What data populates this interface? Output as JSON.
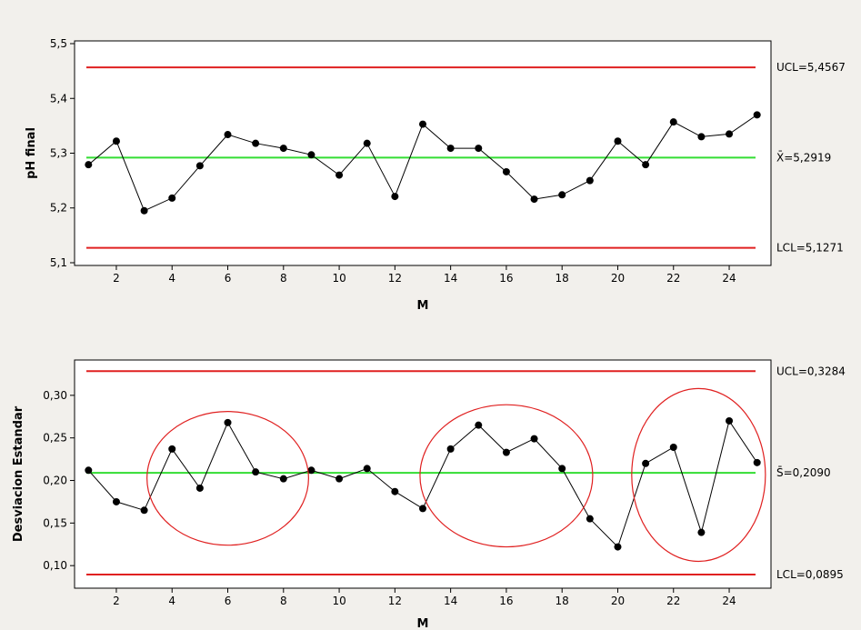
{
  "chart_data": [
    {
      "type": "line",
      "title": "",
      "xlabel": "M",
      "ylabel": "pH final",
      "xlim": [
        0.5,
        25.5
      ],
      "ylim": [
        5.095,
        5.505
      ],
      "x_ticks": [
        2,
        4,
        6,
        8,
        10,
        12,
        14,
        16,
        18,
        20,
        22,
        24
      ],
      "x_tick_labels": [
        "2",
        "4",
        "6",
        "8",
        "10",
        "12",
        "14",
        "16",
        "18",
        "20",
        "22",
        "24"
      ],
      "y_ticks": [
        5.1,
        5.2,
        5.3,
        5.4,
        5.5
      ],
      "y_tick_labels": [
        "5,1",
        "5,2",
        "5,3",
        "5,4",
        "5,5"
      ],
      "grid": false,
      "x": [
        1,
        2,
        3,
        4,
        5,
        6,
        7,
        8,
        9,
        10,
        11,
        12,
        13,
        14,
        15,
        16,
        17,
        18,
        19,
        20,
        21,
        22,
        23,
        24,
        25
      ],
      "values": [
        5.279,
        5.322,
        5.195,
        5.218,
        5.277,
        5.334,
        5.318,
        5.309,
        5.297,
        5.26,
        5.318,
        5.221,
        5.353,
        5.309,
        5.309,
        5.266,
        5.216,
        5.224,
        5.25,
        5.322,
        5.279,
        5.357,
        5.33,
        5.335,
        5.37
      ],
      "limits": [
        {
          "name": "UCL",
          "value": 5.4567,
          "label": "UCL=5,4567",
          "color": "#e02020"
        },
        {
          "name": "center",
          "value": 5.2919,
          "label": "X̄=5,2919",
          "color": "#33dd33"
        },
        {
          "name": "LCL",
          "value": 5.1271,
          "label": "LCL=5,1271",
          "color": "#e02020"
        }
      ]
    },
    {
      "type": "line",
      "title": "",
      "xlabel": "M",
      "ylabel": "Desviacion Estandar",
      "xlim": [
        0.5,
        25.5
      ],
      "ylim": [
        0.0735,
        0.3415
      ],
      "x_ticks": [
        2,
        4,
        6,
        8,
        10,
        12,
        14,
        16,
        18,
        20,
        22,
        24
      ],
      "x_tick_labels": [
        "2",
        "4",
        "6",
        "8",
        "10",
        "12",
        "14",
        "16",
        "18",
        "20",
        "22",
        "24"
      ],
      "y_ticks": [
        0.1,
        0.15,
        0.2,
        0.25,
        0.3
      ],
      "y_tick_labels": [
        "0,10",
        "0,15",
        "0,20",
        "0,25",
        "0,30"
      ],
      "grid": false,
      "x": [
        1,
        2,
        3,
        4,
        5,
        6,
        7,
        8,
        9,
        10,
        11,
        12,
        13,
        14,
        15,
        16,
        17,
        18,
        19,
        20,
        21,
        22,
        23,
        24,
        25
      ],
      "values": [
        0.212,
        0.175,
        0.165,
        0.237,
        0.191,
        0.268,
        0.21,
        0.202,
        0.212,
        0.202,
        0.214,
        0.187,
        0.167,
        0.237,
        0.265,
        0.233,
        0.249,
        0.214,
        0.155,
        0.122,
        0.22,
        0.239,
        0.139,
        0.27,
        0.221
      ],
      "limits": [
        {
          "name": "UCL",
          "value": 0.3284,
          "label": "UCL=0,3284",
          "color": "#e02020"
        },
        {
          "name": "center",
          "value": 0.209,
          "label": "S̄=0,2090",
          "color": "#33dd33"
        },
        {
          "name": "LCL",
          "value": 0.0895,
          "label": "LCL=0,0895",
          "color": "#e02020"
        }
      ],
      "annotations": [
        {
          "type": "ellipse",
          "x_center": 6.0,
          "x_radius": 2.9,
          "y_center": 0.2025,
          "y_radius": 0.0785,
          "color": "#e02020"
        },
        {
          "type": "ellipse",
          "x_center": 16.0,
          "x_radius": 3.1,
          "y_center": 0.2055,
          "y_radius": 0.0835,
          "color": "#e02020"
        },
        {
          "type": "ellipse",
          "x_center": 22.9,
          "x_radius": 2.4,
          "y_center": 0.2065,
          "y_radius": 0.1015,
          "color": "#e02020"
        }
      ]
    }
  ],
  "colors": {
    "background": "#f2f0ec",
    "plot_area": "#ffffff",
    "data_line": "#000000",
    "control_limit": "#e02020",
    "center_line": "#33dd33"
  }
}
